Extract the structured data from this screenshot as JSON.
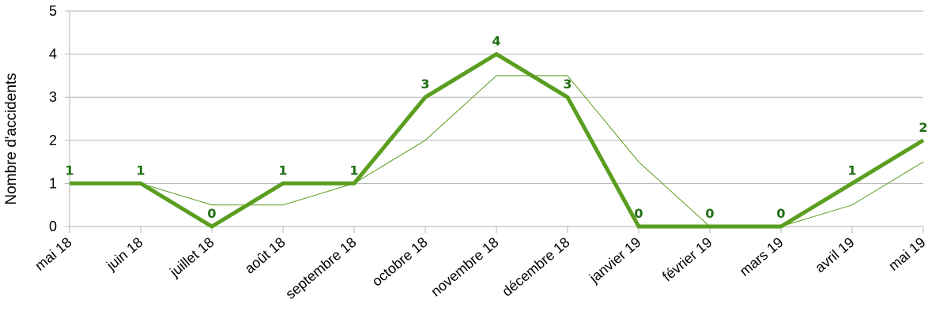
{
  "chart_data": {
    "type": "line",
    "title": "",
    "xlabel": "",
    "ylabel": "Nombre d'accidents",
    "ylim": [
      0,
      5
    ],
    "yticks": [
      0,
      1,
      2,
      3,
      4,
      5
    ],
    "grid": true,
    "legend": "none",
    "categories": [
      "mai 18",
      "juin 18",
      "juillet 18",
      "août 18",
      "septembre 18",
      "octobre 18",
      "novembre 18",
      "décembre 18",
      "janvier 19",
      "février 19",
      "mars 19",
      "avril 19",
      "mai 19"
    ],
    "series": [
      {
        "values": [
          1,
          1,
          0,
          1,
          1,
          3,
          4,
          3,
          0,
          0,
          0,
          1,
          2
        ],
        "data_labels": [
          "1",
          "1",
          "0",
          "1",
          "1",
          "3",
          "4",
          "3",
          "0",
          "0",
          "0",
          "1",
          "2"
        ],
        "color": "#5a9e1f"
      },
      {
        "values": [
          null,
          1,
          0.5,
          0.5,
          1,
          2,
          3.5,
          3.5,
          1.5,
          0,
          0,
          0.5,
          1.5
        ],
        "color": "#5a9e1f"
      }
    ]
  }
}
